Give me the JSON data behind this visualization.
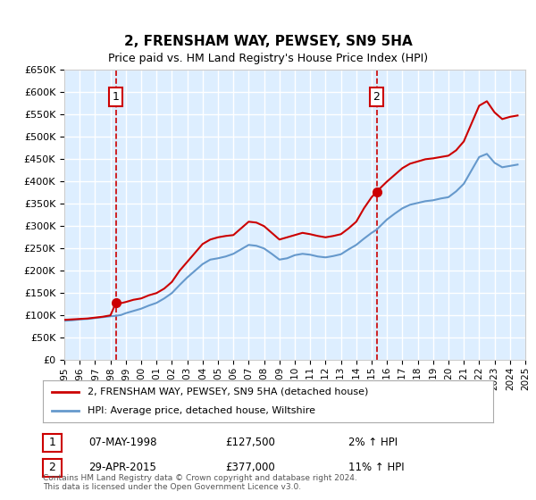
{
  "title": "2, FRENSHAM WAY, PEWSEY, SN9 5HA",
  "subtitle": "Price paid vs. HM Land Registry's House Price Index (HPI)",
  "legend_line1": "2, FRENSHAM WAY, PEWSEY, SN9 5HA (detached house)",
  "legend_line2": "HPI: Average price, detached house, Wiltshire",
  "annotation1_label": "1",
  "annotation1_date": "07-MAY-1998",
  "annotation1_price": "£127,500",
  "annotation1_hpi": "2% ↑ HPI",
  "annotation1_year": 1998.35,
  "annotation1_value": 127500,
  "annotation2_label": "2",
  "annotation2_date": "29-APR-2015",
  "annotation2_price": "£377,000",
  "annotation2_hpi": "11% ↑ HPI",
  "annotation2_year": 2015.32,
  "annotation2_value": 377000,
  "ylabel_format": "£{0}K",
  "yticks": [
    0,
    50000,
    100000,
    150000,
    200000,
    250000,
    300000,
    350000,
    400000,
    450000,
    500000,
    550000,
    600000,
    650000
  ],
  "line_color_property": "#cc0000",
  "line_color_hpi": "#6699cc",
  "background_color": "#ddeeff",
  "plot_bg_color": "#ddeeff",
  "grid_color": "#ffffff",
  "footer": "Contains HM Land Registry data © Crown copyright and database right 2024.\nThis data is licensed under the Open Government Licence v3.0.",
  "property_hpi_data": {
    "years": [
      1995.0,
      1995.5,
      1996.0,
      1996.5,
      1997.0,
      1997.5,
      1998.0,
      1998.35,
      1998.7,
      1999.0,
      1999.5,
      2000.0,
      2000.5,
      2001.0,
      2001.5,
      2002.0,
      2002.5,
      2003.0,
      2003.5,
      2004.0,
      2004.5,
      2005.0,
      2005.5,
      2006.0,
      2006.5,
      2007.0,
      2007.5,
      2008.0,
      2008.5,
      2009.0,
      2009.5,
      2010.0,
      2010.5,
      2011.0,
      2011.5,
      2012.0,
      2012.5,
      2013.0,
      2013.5,
      2014.0,
      2014.5,
      2015.0,
      2015.32,
      2015.7,
      2016.0,
      2016.5,
      2017.0,
      2017.5,
      2018.0,
      2018.5,
      2019.0,
      2019.5,
      2020.0,
      2020.5,
      2021.0,
      2021.5,
      2022.0,
      2022.5,
      2023.0,
      2023.5,
      2024.0,
      2024.5
    ],
    "property": [
      90000,
      91000,
      92000,
      93000,
      95000,
      97000,
      100000,
      127500,
      127500,
      130000,
      135000,
      138000,
      145000,
      150000,
      160000,
      175000,
      200000,
      220000,
      240000,
      260000,
      270000,
      275000,
      278000,
      280000,
      295000,
      310000,
      308000,
      300000,
      285000,
      270000,
      275000,
      280000,
      285000,
      282000,
      278000,
      275000,
      278000,
      282000,
      295000,
      310000,
      340000,
      365000,
      377000,
      390000,
      400000,
      415000,
      430000,
      440000,
      445000,
      450000,
      452000,
      455000,
      458000,
      470000,
      490000,
      530000,
      570000,
      580000,
      555000,
      540000,
      545000,
      548000
    ],
    "hpi": [
      88000,
      89000,
      91000,
      92000,
      94000,
      96000,
      98000,
      99000,
      101000,
      105000,
      110000,
      115000,
      122000,
      128000,
      138000,
      150000,
      168000,
      185000,
      200000,
      215000,
      225000,
      228000,
      232000,
      238000,
      248000,
      258000,
      256000,
      250000,
      238000,
      225000,
      228000,
      235000,
      238000,
      236000,
      232000,
      230000,
      233000,
      237000,
      248000,
      258000,
      272000,
      285000,
      292000,
      305000,
      315000,
      328000,
      340000,
      348000,
      352000,
      356000,
      358000,
      362000,
      365000,
      378000,
      395000,
      425000,
      455000,
      462000,
      442000,
      432000,
      435000,
      438000
    ]
  }
}
